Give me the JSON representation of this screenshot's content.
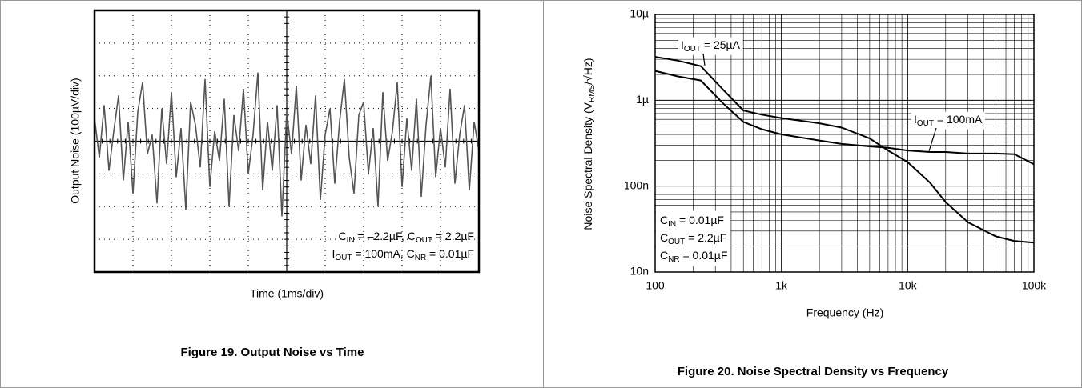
{
  "chart_data": [
    {
      "type": "line",
      "xlabel": "Time (1ms/div)",
      "ylabel": "Output Noise (100µV/div)",
      "caption": "Figure 19. Output Noise vs Time",
      "annotations": [
        [
          "C",
          "IN",
          " = –2.2µF, C",
          "OUT",
          " = 2.2µF"
        ],
        [
          "I",
          "OUT",
          " = 100mA, C",
          "NR",
          " = 0.01µF"
        ]
      ],
      "xlim": [
        0,
        10
      ],
      "ylim": [
        -4,
        4
      ],
      "xticks": [
        0,
        1,
        2,
        3,
        4,
        5,
        6,
        7,
        8,
        9,
        10
      ],
      "yticks": [
        -4,
        -3,
        -2,
        -1,
        0,
        1,
        2,
        3,
        4
      ],
      "grid": true,
      "x": [
        0,
        0.125,
        0.25,
        0.375,
        0.5,
        0.625,
        0.75,
        0.875,
        1,
        1.125,
        1.25,
        1.375,
        1.5,
        1.625,
        1.75,
        1.875,
        2,
        2.125,
        2.25,
        2.375,
        2.5,
        2.625,
        2.75,
        2.875,
        3,
        3.125,
        3.25,
        3.375,
        3.5,
        3.625,
        3.75,
        3.875,
        4,
        4.125,
        4.25,
        4.375,
        4.5,
        4.625,
        4.75,
        4.875,
        5,
        5.125,
        5.25,
        5.375,
        5.5,
        5.625,
        5.75,
        5.875,
        6,
        6.125,
        6.25,
        6.375,
        6.5,
        6.625,
        6.75,
        6.875,
        7,
        7.125,
        7.25,
        7.375,
        7.5,
        7.625,
        7.75,
        7.875,
        8,
        8.125,
        8.25,
        8.375,
        8.5,
        8.625,
        8.75,
        8.875,
        9,
        9.125,
        9.25,
        9.375,
        9.5,
        9.625,
        9.75,
        9.875,
        10
      ],
      "series": [
        {
          "color": "#555555",
          "values": [
            0.7,
            -0.5,
            1.1,
            -0.9,
            0.3,
            1.4,
            -1.2,
            0.6,
            -1.6,
            0.9,
            1.8,
            -0.4,
            0.2,
            -1.9,
            1.0,
            -0.7,
            1.5,
            -1.1,
            0.4,
            -2.1,
            1.2,
            0.5,
            -0.8,
            1.9,
            -1.4,
            0.3,
            -0.6,
            1.3,
            -2.0,
            0.8,
            -0.3,
            1.6,
            -1.0,
            0.2,
            2.1,
            -1.5,
            0.6,
            -0.9,
            1.1,
            -2.3,
            0.9,
            -0.4,
            1.7,
            -1.2,
            0.5,
            -0.7,
            1.4,
            -1.8,
            0.2,
            1.0,
            -1.3,
            0.6,
            1.9,
            -0.5,
            -1.6,
            0.8,
            1.2,
            -1.0,
            0.4,
            -2.0,
            1.5,
            -0.6,
            0.3,
            1.8,
            -1.4,
            0.7,
            -0.9,
            1.3,
            -1.7,
            0.5,
            2.0,
            -1.1,
            0.4,
            -0.8,
            1.6,
            -1.3,
            0.2,
            1.1,
            -1.5,
            0.6,
            -0.3
          ]
        }
      ]
    },
    {
      "type": "line",
      "xlabel": "Frequency (Hz)",
      "ylabel": [
        "Noise Spectral Density (V",
        "RMS",
        "/√Hz)"
      ],
      "caption": "Figure 20. Noise Spectral Density vs Frequency",
      "annotations": [
        [
          "C",
          "IN",
          " = 0.01µF"
        ],
        [
          "C",
          "OUT",
          " = 2.2µF"
        ],
        [
          "C",
          "NR",
          " = 0.01µF"
        ]
      ],
      "xscale": "log",
      "yscale": "log",
      "xlim": [
        100,
        100000
      ],
      "ylim": [
        1e-08,
        1e-05
      ],
      "xticks": [
        100,
        {
          "value": 1000,
          "label": "1k"
        },
        {
          "value": 10000,
          "label": "10k"
        },
        {
          "value": 100000,
          "label": "100k"
        }
      ],
      "yticks": [
        {
          "value": 1e-08,
          "label": "10n"
        },
        {
          "value": 1e-07,
          "label": "100n"
        },
        {
          "value": 1e-06,
          "label": "1µ"
        },
        {
          "value": 1e-05,
          "label": "10µ"
        }
      ],
      "grid": true,
      "minor_grid": true,
      "x": [
        100,
        150,
        230,
        350,
        500,
        700,
        1000,
        2000,
        3000,
        5000,
        7000,
        10000,
        15000,
        20000,
        30000,
        50000,
        70000,
        100000
      ],
      "series": [
        {
          "name": [
            "I",
            "OUT",
            " = 25µA"
          ],
          "color": "#000000",
          "values": [
            3.2e-06,
            2.9e-06,
            2.5e-06,
            1.3e-06,
            7.6e-07,
            6.8e-07,
            6.2e-07,
            5.4e-07,
            4.8e-07,
            3.6e-07,
            2.6e-07,
            1.9e-07,
            1.1e-07,
            6.5e-08,
            3.8e-08,
            2.6e-08,
            2.3e-08,
            2.2e-08
          ]
        },
        {
          "name": [
            "I",
            "OUT",
            " = 100mA"
          ],
          "color": "#000000",
          "values": [
            2.2e-06,
            1.9e-06,
            1.7e-06,
            9e-07,
            5.6e-07,
            4.6e-07,
            4e-07,
            3.4e-07,
            3.1e-07,
            2.9e-07,
            2.8e-07,
            2.6e-07,
            2.5e-07,
            2.5e-07,
            2.4e-07,
            2.4e-07,
            2.35e-07,
            1.8e-07
          ]
        }
      ]
    }
  ]
}
